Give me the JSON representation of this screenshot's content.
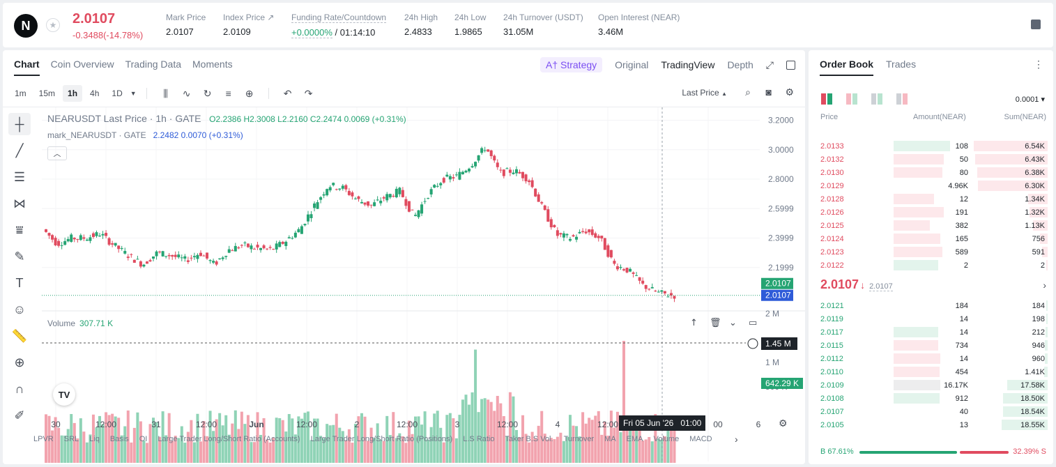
{
  "header": {
    "logo": "N",
    "last_price": "2.0107",
    "change": "-0.3488(-14.78%)",
    "stats": [
      {
        "label": "Mark Price",
        "value": "2.0107"
      },
      {
        "label": "Index Price ↗",
        "value": "2.0109"
      },
      {
        "label": "Funding Rate/Countdown",
        "value_green": "+0.0000%",
        "value": "/ 01:14:10"
      },
      {
        "label": "24h High",
        "value": "2.4833"
      },
      {
        "label": "24h Low",
        "value": "1.9865"
      },
      {
        "label": "24h Turnover (USDT)",
        "value": "31.05M"
      },
      {
        "label": "Open Interest (NEAR)",
        "value": "3.46M"
      }
    ]
  },
  "chart_tabs": [
    "Chart",
    "Coin Overview",
    "Trading Data",
    "Moments"
  ],
  "view_tabs": {
    "strategy": "A† Strategy",
    "original": "Original",
    "tradingview": "TradingView",
    "depth": "Depth"
  },
  "timeframes": [
    "1m",
    "15m",
    "1h",
    "4h",
    "1D"
  ],
  "price_type": "Last Price",
  "legend": {
    "symbol": "NEARUSDT Last Price · 1h · GATE",
    "ohlc": "O2.2386  H2.3008  L2.2160  C2.2474  0.0069 (+0.31%)",
    "mark_name": "mark_NEARUSDT · GATE",
    "mark_vals": "2.2482  0.0070 (+0.31%)"
  },
  "volume": {
    "label": "Volume",
    "value": "307.71 K"
  },
  "price_axis": [
    "3.2000",
    "3.0000",
    "2.8000",
    "2.5999",
    "2.3999",
    "2.1999"
  ],
  "price_tags": {
    "green": "2.0107",
    "blue": "2.0107"
  },
  "vol_axis": [
    "2 M",
    "1 M",
    "500 K"
  ],
  "vol_tags": {
    "cursor": "1.45 M",
    "last": "642.29 K"
  },
  "time_axis": [
    "30",
    "12:00",
    "31",
    "12:00",
    "Jun",
    "12:00",
    "2",
    "12:00",
    "3",
    "12:00",
    "4",
    "12:00",
    "00",
    "6"
  ],
  "crosshair_time": "Fri 05 Jun '26   01:00",
  "indicators": [
    "LPVR",
    "SRL",
    "Liq",
    "Basis",
    "OI",
    "Large Trader Long/Short Ratio (Accounts)",
    "Large Trader Long/Short Ratio (Positions)",
    "L.S Ratio",
    "Taker B.S Vol.",
    "Turnover",
    "MA",
    "EMA",
    "Volume",
    "MACD"
  ],
  "colors": {
    "up": "#25a473",
    "down": "#e04b5f",
    "accent": "#2e5bd8"
  },
  "chart_data": {
    "type": "candlestick",
    "title": "NEARUSDT Last Price · 1h · GATE",
    "ylim": [
      1.95,
      3.25
    ],
    "x": [
      "30",
      "12:00",
      "31",
      "12:00",
      "Jun",
      "12:00",
      "2",
      "12:00",
      "3",
      "12:00",
      "4",
      "12:00",
      "00",
      "6"
    ],
    "close_path": [
      2.46,
      2.36,
      2.4,
      2.4,
      2.43,
      2.35,
      2.28,
      2.22,
      2.3,
      2.28,
      2.25,
      2.3,
      2.22,
      2.32,
      2.35,
      2.33,
      2.32,
      2.38,
      2.46,
      2.62,
      2.76,
      2.74,
      2.66,
      2.62,
      2.68,
      2.72,
      2.54,
      2.7,
      2.8,
      2.82,
      2.9,
      3.02,
      2.84,
      2.86,
      2.8,
      2.6,
      2.42,
      2.4,
      2.45,
      2.4,
      2.22,
      2.18,
      2.08,
      2.03,
      2.01
    ],
    "volume_ylim": [
      0,
      2200000
    ]
  },
  "orderbook": {
    "tabs": [
      "Order Book",
      "Trades"
    ],
    "tick": "0.0001",
    "headers": {
      "price": "Price",
      "amount": "Amount(NEAR)",
      "sum": "Sum(NEAR)"
    },
    "asks": [
      {
        "price": "2.0133",
        "amount": "108",
        "sum": "6.54K",
        "af": 0.7,
        "sf": 1.0,
        "ag": true
      },
      {
        "price": "2.0132",
        "amount": "50",
        "sum": "6.43K",
        "af": 0.62,
        "sf": 0.98
      },
      {
        "price": "2.0130",
        "amount": "80",
        "sum": "6.38K",
        "af": 0.6,
        "sf": 0.95
      },
      {
        "price": "2.0129",
        "amount": "4.96K",
        "sum": "6.30K",
        "af": 0.0,
        "sf": 0.94
      },
      {
        "price": "2.0128",
        "amount": "12",
        "sum": "1.34K",
        "af": 0.5,
        "sf": 0.26
      },
      {
        "price": "2.0126",
        "amount": "191",
        "sum": "1.32K",
        "af": 0.62,
        "sf": 0.25
      },
      {
        "price": "2.0125",
        "amount": "382",
        "sum": "1.13K",
        "af": 0.45,
        "sf": 0.2
      },
      {
        "price": "2.0124",
        "amount": "165",
        "sum": "756",
        "af": 0.58,
        "sf": 0.1
      },
      {
        "price": "2.0123",
        "amount": "589",
        "sum": "591",
        "af": 0.6,
        "sf": 0.08
      },
      {
        "price": "2.0122",
        "amount": "2",
        "sum": "2",
        "af": 0.55,
        "sf": 0.02,
        "ag": true
      }
    ],
    "mid_price": "2.0107",
    "mid_mark": "2.0107",
    "bids": [
      {
        "price": "2.0121",
        "amount": "184",
        "sum": "184",
        "af": 0.0,
        "sf": 0.02
      },
      {
        "price": "2.0119",
        "amount": "14",
        "sum": "198",
        "af": 0.0,
        "sf": 0.02
      },
      {
        "price": "2.0117",
        "amount": "14",
        "sum": "212",
        "af": 0.55,
        "sf": 0.03,
        "ag": true
      },
      {
        "price": "2.0115",
        "amount": "734",
        "sum": "946",
        "af": 0.55,
        "sf": 0.04
      },
      {
        "price": "2.0112",
        "amount": "14",
        "sum": "960",
        "af": 0.58,
        "sf": 0.04
      },
      {
        "price": "2.0110",
        "amount": "454",
        "sum": "1.41K",
        "af": 0.57,
        "sf": 0.05
      },
      {
        "price": "2.0109",
        "amount": "16.17K",
        "sum": "17.58K",
        "af": 0.58,
        "sf": 0.55,
        "gray": true
      },
      {
        "price": "2.0108",
        "amount": "912",
        "sum": "18.50K",
        "af": 0.57,
        "sf": 0.6,
        "ag": true
      },
      {
        "price": "2.0107",
        "amount": "40",
        "sum": "18.54K",
        "af": 0.0,
        "sf": 0.6
      },
      {
        "price": "2.0105",
        "amount": "13",
        "sum": "18.55K",
        "af": 0.0,
        "sf": 0.62
      }
    ],
    "buy_ratio": "B 67.61%",
    "sell_ratio": "32.39% S"
  }
}
